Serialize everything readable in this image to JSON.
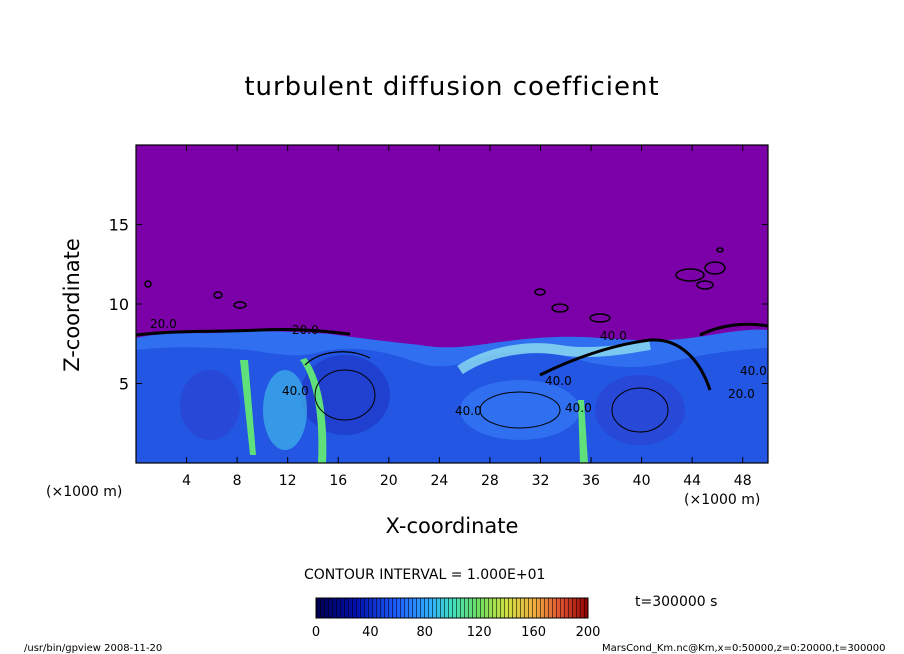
{
  "title": "turbulent diffusion coefficient",
  "contour_interval": "CONTOUR INTERVAL = 1.000E+01",
  "time_label": "t=300000  s",
  "footer_left": "/usr/bin/gpview   2008-11-20",
  "footer_right": "MarsCond_Km.nc@Km,x=0:50000,z=0:20000,t=300000",
  "colors": {
    "upper_fill": "#7b00a8",
    "deep_blue": "#1f3fcf",
    "mid_blue": "#2f6ff0",
    "cyan": "#3fb6e8",
    "light_cyan": "#8fe0f0",
    "green": "#5fe07a"
  },
  "chart_data": {
    "type": "heatmap",
    "title": "turbulent diffusion coefficient",
    "xlabel": "X-coordinate",
    "ylabel": "Z-coordinate",
    "x_unit": "(×1000 m)",
    "y_unit": "(×1000 m)",
    "xlim": [
      0,
      50
    ],
    "ylim": [
      0,
      20
    ],
    "x_ticks": [
      4,
      8,
      12,
      16,
      20,
      24,
      28,
      32,
      36,
      40,
      44,
      48
    ],
    "y_ticks": [
      5,
      10,
      15
    ],
    "contour_interval": 10,
    "contour_labels": [
      "20.0",
      "20.0",
      "40.0",
      "40.0",
      "40.0",
      "40.0",
      "20.0",
      "40.0",
      "40.0"
    ],
    "colorbar": {
      "range": [
        0,
        200
      ],
      "ticks": [
        0,
        40,
        80,
        120,
        160,
        200
      ],
      "colors": [
        "#000060",
        "#0010c0",
        "#1f5fff",
        "#30b0ff",
        "#40e0d0",
        "#60e060",
        "#c0e040",
        "#f0c040",
        "#f07030",
        "#d02020",
        "#800000"
      ]
    },
    "regions": [
      {
        "z_range": [
          8,
          20
        ],
        "value_range": [
          0,
          10
        ],
        "description_color": "upper_fill"
      },
      {
        "z_range": [
          0,
          8
        ],
        "value_range": [
          10,
          80
        ],
        "description_color": "mid_blue"
      }
    ]
  }
}
